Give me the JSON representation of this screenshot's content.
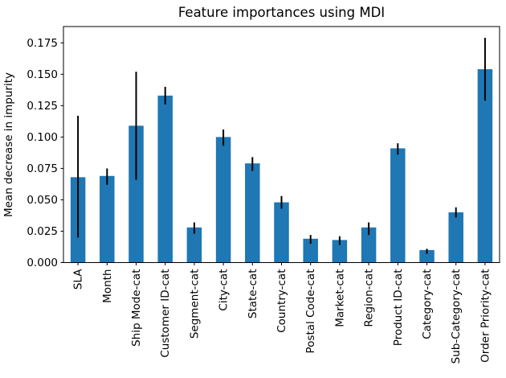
{
  "chart_data": {
    "type": "bar",
    "title": "Feature importances using MDI",
    "xlabel": "",
    "ylabel": "Mean decrease in impurity",
    "ylim": [
      0,
      0.188
    ],
    "yticks": [
      0.0,
      0.025,
      0.05,
      0.075,
      0.1,
      0.125,
      0.15,
      0.175
    ],
    "ytick_format_decimals": 3,
    "grid": "off",
    "legend": "none",
    "bar_color": "#1f77b4",
    "error_color": "#000000",
    "axis_color": "#000000",
    "text_color": "#000000",
    "categories": [
      "SLA",
      "Month",
      "Ship Mode-cat",
      "Customer ID-cat",
      "Segment-cat",
      "City-cat",
      "State-cat",
      "Country-cat",
      "Postal Code-cat",
      "Market-cat",
      "Region-cat",
      "Product ID-cat",
      "Category-cat",
      "Sub-Category-cat",
      "Order Priority-cat"
    ],
    "values": [
      0.068,
      0.069,
      0.109,
      0.133,
      0.028,
      0.1,
      0.079,
      0.048,
      0.019,
      0.018,
      0.028,
      0.091,
      0.01,
      0.04,
      0.154
    ],
    "error_low": [
      0.02,
      0.062,
      0.066,
      0.126,
      0.023,
      0.093,
      0.073,
      0.043,
      0.015,
      0.014,
      0.022,
      0.086,
      0.007,
      0.036,
      0.129
    ],
    "error_high": [
      0.117,
      0.075,
      0.152,
      0.14,
      0.032,
      0.106,
      0.084,
      0.053,
      0.022,
      0.021,
      0.032,
      0.095,
      0.011,
      0.044,
      0.179
    ]
  }
}
